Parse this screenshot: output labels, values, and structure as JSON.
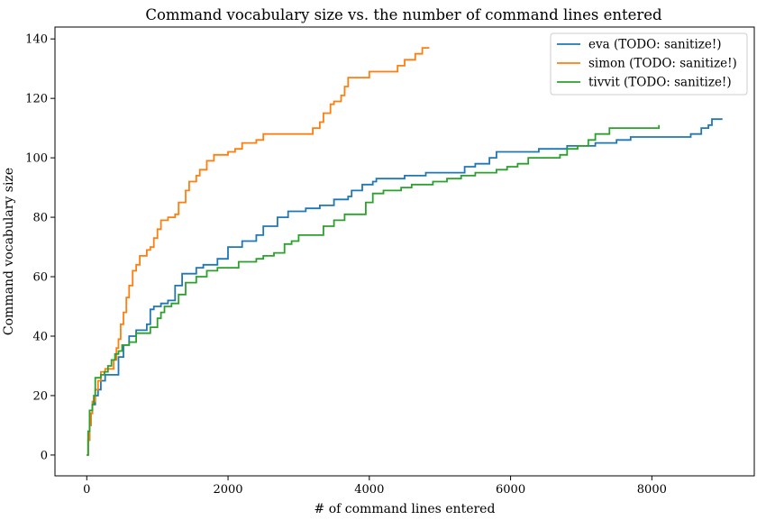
{
  "chart_data": {
    "type": "line",
    "title": "Command vocabulary size vs. the number of command lines entered",
    "xlabel": "# of command lines entered",
    "ylabel": "Command vocabulary size",
    "xlim": [
      -450,
      9450
    ],
    "ylim": [
      -7,
      144
    ],
    "xticks": [
      0,
      2000,
      4000,
      6000,
      8000
    ],
    "yticks": [
      0,
      20,
      40,
      60,
      80,
      100,
      120,
      140
    ],
    "grid": false,
    "legend_position": "top-right",
    "step": true,
    "series": [
      {
        "name": "eva (TODO: sanitize!)",
        "color": "#1f77b4",
        "points": [
          [
            0,
            0
          ],
          [
            20,
            5
          ],
          [
            40,
            10
          ],
          [
            60,
            14
          ],
          [
            80,
            17
          ],
          [
            120,
            20
          ],
          [
            160,
            22
          ],
          [
            200,
            25
          ],
          [
            260,
            27
          ],
          [
            400,
            27
          ],
          [
            450,
            33
          ],
          [
            520,
            37
          ],
          [
            600,
            40
          ],
          [
            700,
            42
          ],
          [
            850,
            44
          ],
          [
            900,
            49
          ],
          [
            950,
            50
          ],
          [
            1050,
            51
          ],
          [
            1150,
            52
          ],
          [
            1250,
            57
          ],
          [
            1350,
            61
          ],
          [
            1500,
            61
          ],
          [
            1550,
            63
          ],
          [
            1650,
            64
          ],
          [
            1800,
            64
          ],
          [
            1850,
            66
          ],
          [
            2000,
            70
          ],
          [
            2200,
            72
          ],
          [
            2400,
            74
          ],
          [
            2500,
            77
          ],
          [
            2700,
            80
          ],
          [
            2850,
            82
          ],
          [
            3100,
            83
          ],
          [
            3300,
            84
          ],
          [
            3500,
            86
          ],
          [
            3700,
            87
          ],
          [
            3750,
            89
          ],
          [
            3900,
            91
          ],
          [
            4050,
            92
          ],
          [
            4100,
            93
          ],
          [
            4400,
            93
          ],
          [
            4500,
            94
          ],
          [
            4800,
            95
          ],
          [
            5300,
            95
          ],
          [
            5350,
            97
          ],
          [
            5500,
            98
          ],
          [
            5700,
            100
          ],
          [
            5800,
            102
          ],
          [
            6400,
            103
          ],
          [
            6800,
            104
          ],
          [
            7100,
            104
          ],
          [
            7200,
            105
          ],
          [
            7500,
            106
          ],
          [
            7700,
            107
          ],
          [
            8500,
            107
          ],
          [
            8550,
            108
          ],
          [
            8700,
            110
          ],
          [
            8800,
            111
          ],
          [
            8850,
            113
          ],
          [
            9000,
            113
          ]
        ]
      },
      {
        "name": "simon (TODO: sanitize!)",
        "color": "#ff7f0e",
        "points": [
          [
            0,
            0
          ],
          [
            20,
            5
          ],
          [
            40,
            10
          ],
          [
            60,
            14
          ],
          [
            80,
            18
          ],
          [
            120,
            22
          ],
          [
            160,
            25
          ],
          [
            200,
            28
          ],
          [
            260,
            29
          ],
          [
            300,
            29
          ],
          [
            380,
            32
          ],
          [
            420,
            36
          ],
          [
            450,
            39
          ],
          [
            480,
            44
          ],
          [
            520,
            48
          ],
          [
            560,
            53
          ],
          [
            600,
            57
          ],
          [
            650,
            62
          ],
          [
            700,
            64
          ],
          [
            750,
            67
          ],
          [
            850,
            69
          ],
          [
            900,
            70
          ],
          [
            950,
            73
          ],
          [
            1000,
            76
          ],
          [
            1050,
            79
          ],
          [
            1150,
            80
          ],
          [
            1250,
            81
          ],
          [
            1300,
            85
          ],
          [
            1400,
            89
          ],
          [
            1450,
            92
          ],
          [
            1550,
            94
          ],
          [
            1600,
            96
          ],
          [
            1700,
            99
          ],
          [
            1800,
            101
          ],
          [
            2000,
            102
          ],
          [
            2100,
            103
          ],
          [
            2200,
            105
          ],
          [
            2400,
            106
          ],
          [
            2500,
            108
          ],
          [
            3100,
            108
          ],
          [
            3200,
            110
          ],
          [
            3300,
            112
          ],
          [
            3350,
            115
          ],
          [
            3450,
            118
          ],
          [
            3500,
            119
          ],
          [
            3600,
            121
          ],
          [
            3650,
            124
          ],
          [
            3700,
            127
          ],
          [
            3800,
            127
          ],
          [
            4000,
            129
          ],
          [
            4300,
            129
          ],
          [
            4400,
            131
          ],
          [
            4500,
            133
          ],
          [
            4650,
            135
          ],
          [
            4750,
            137
          ],
          [
            4850,
            137
          ]
        ]
      },
      {
        "name": "tivvit (TODO: sanitize!)",
        "color": "#2ca02c",
        "points": [
          [
            0,
            0
          ],
          [
            20,
            8
          ],
          [
            40,
            15
          ],
          [
            80,
            17
          ],
          [
            100,
            20
          ],
          [
            120,
            26
          ],
          [
            200,
            27
          ],
          [
            250,
            28
          ],
          [
            300,
            30
          ],
          [
            350,
            32
          ],
          [
            400,
            34
          ],
          [
            450,
            35
          ],
          [
            500,
            37
          ],
          [
            600,
            38
          ],
          [
            700,
            41
          ],
          [
            900,
            43
          ],
          [
            1000,
            46
          ],
          [
            1050,
            48
          ],
          [
            1100,
            50
          ],
          [
            1200,
            51
          ],
          [
            1300,
            54
          ],
          [
            1400,
            58
          ],
          [
            1550,
            60
          ],
          [
            1700,
            62
          ],
          [
            1850,
            63
          ],
          [
            2100,
            63
          ],
          [
            2150,
            65
          ],
          [
            2400,
            66
          ],
          [
            2500,
            67
          ],
          [
            2650,
            68
          ],
          [
            2800,
            71
          ],
          [
            2900,
            72
          ],
          [
            3000,
            74
          ],
          [
            3300,
            74
          ],
          [
            3350,
            77
          ],
          [
            3500,
            79
          ],
          [
            3650,
            81
          ],
          [
            3850,
            81
          ],
          [
            3950,
            85
          ],
          [
            4050,
            88
          ],
          [
            4200,
            89
          ],
          [
            4450,
            90
          ],
          [
            4600,
            91
          ],
          [
            4900,
            92
          ],
          [
            5100,
            93
          ],
          [
            5300,
            94
          ],
          [
            5500,
            95
          ],
          [
            5800,
            96
          ],
          [
            5950,
            97
          ],
          [
            6100,
            98
          ],
          [
            6250,
            100
          ],
          [
            6700,
            101
          ],
          [
            6800,
            103
          ],
          [
            6950,
            104
          ],
          [
            7100,
            106
          ],
          [
            7200,
            108
          ],
          [
            7400,
            110
          ],
          [
            8100,
            110
          ],
          [
            8100,
            111
          ]
        ]
      }
    ]
  }
}
